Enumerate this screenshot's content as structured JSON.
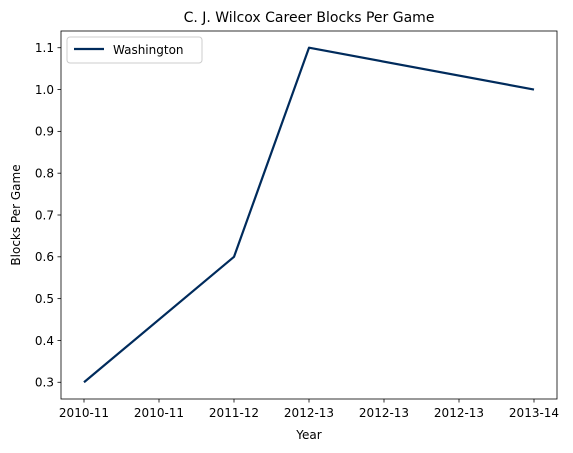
{
  "chart_data": {
    "type": "line",
    "title": "C. J. Wilcox Career Blocks Per Game",
    "xlabel": "Year",
    "ylabel": "Blocks Per Game",
    "x_tick_labels": [
      "2010-11",
      "2010-11",
      "2011-12",
      "2012-13",
      "2012-13",
      "2012-13",
      "2013-14"
    ],
    "y_ticks": [
      0.3,
      0.4,
      0.5,
      0.6,
      0.7,
      0.8,
      0.9,
      1.0,
      1.1
    ],
    "y_tick_labels": [
      "0.3",
      "0.4",
      "0.5",
      "0.6",
      "0.7",
      "0.8",
      "0.9",
      "1.0",
      "1.1"
    ],
    "ylim": [
      0.26,
      1.14
    ],
    "grid": false,
    "legend_position": "top-left",
    "series": [
      {
        "name": "Washington",
        "color": "#002b5c",
        "points": [
          {
            "x": "2010-11",
            "y": 0.3
          },
          {
            "x": "2011-12",
            "y": 0.6
          },
          {
            "x": "2012-13",
            "y": 1.1
          },
          {
            "x": "2013-14",
            "y": 1.0
          }
        ]
      }
    ]
  }
}
